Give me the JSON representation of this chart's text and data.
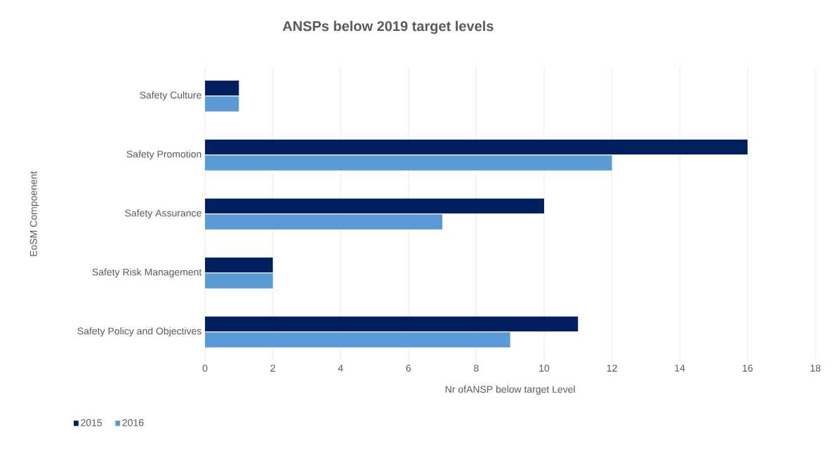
{
  "chart_data": {
    "type": "bar",
    "orientation": "horizontal",
    "title": "ANSPs below 2019 target levels",
    "xlabel": "Nr ofANSP below target Level",
    "ylabel": "EoSM Compoenent",
    "categories": [
      "Safety Culture",
      "Safety Promotion",
      "Safety Assurance",
      "Safety Risk Management",
      "Safety Policy and Objectives"
    ],
    "series": [
      {
        "name": "2015",
        "color": "#002060",
        "values": [
          1,
          16,
          10,
          2,
          11
        ]
      },
      {
        "name": "2016",
        "color": "#5b9bd5",
        "values": [
          1,
          12,
          7,
          2,
          9
        ]
      }
    ],
    "xlim": [
      0,
      18
    ],
    "xticks": [
      0,
      2,
      4,
      6,
      8,
      10,
      12,
      14,
      16,
      18
    ],
    "grid": "x",
    "legend": "bottom left"
  }
}
